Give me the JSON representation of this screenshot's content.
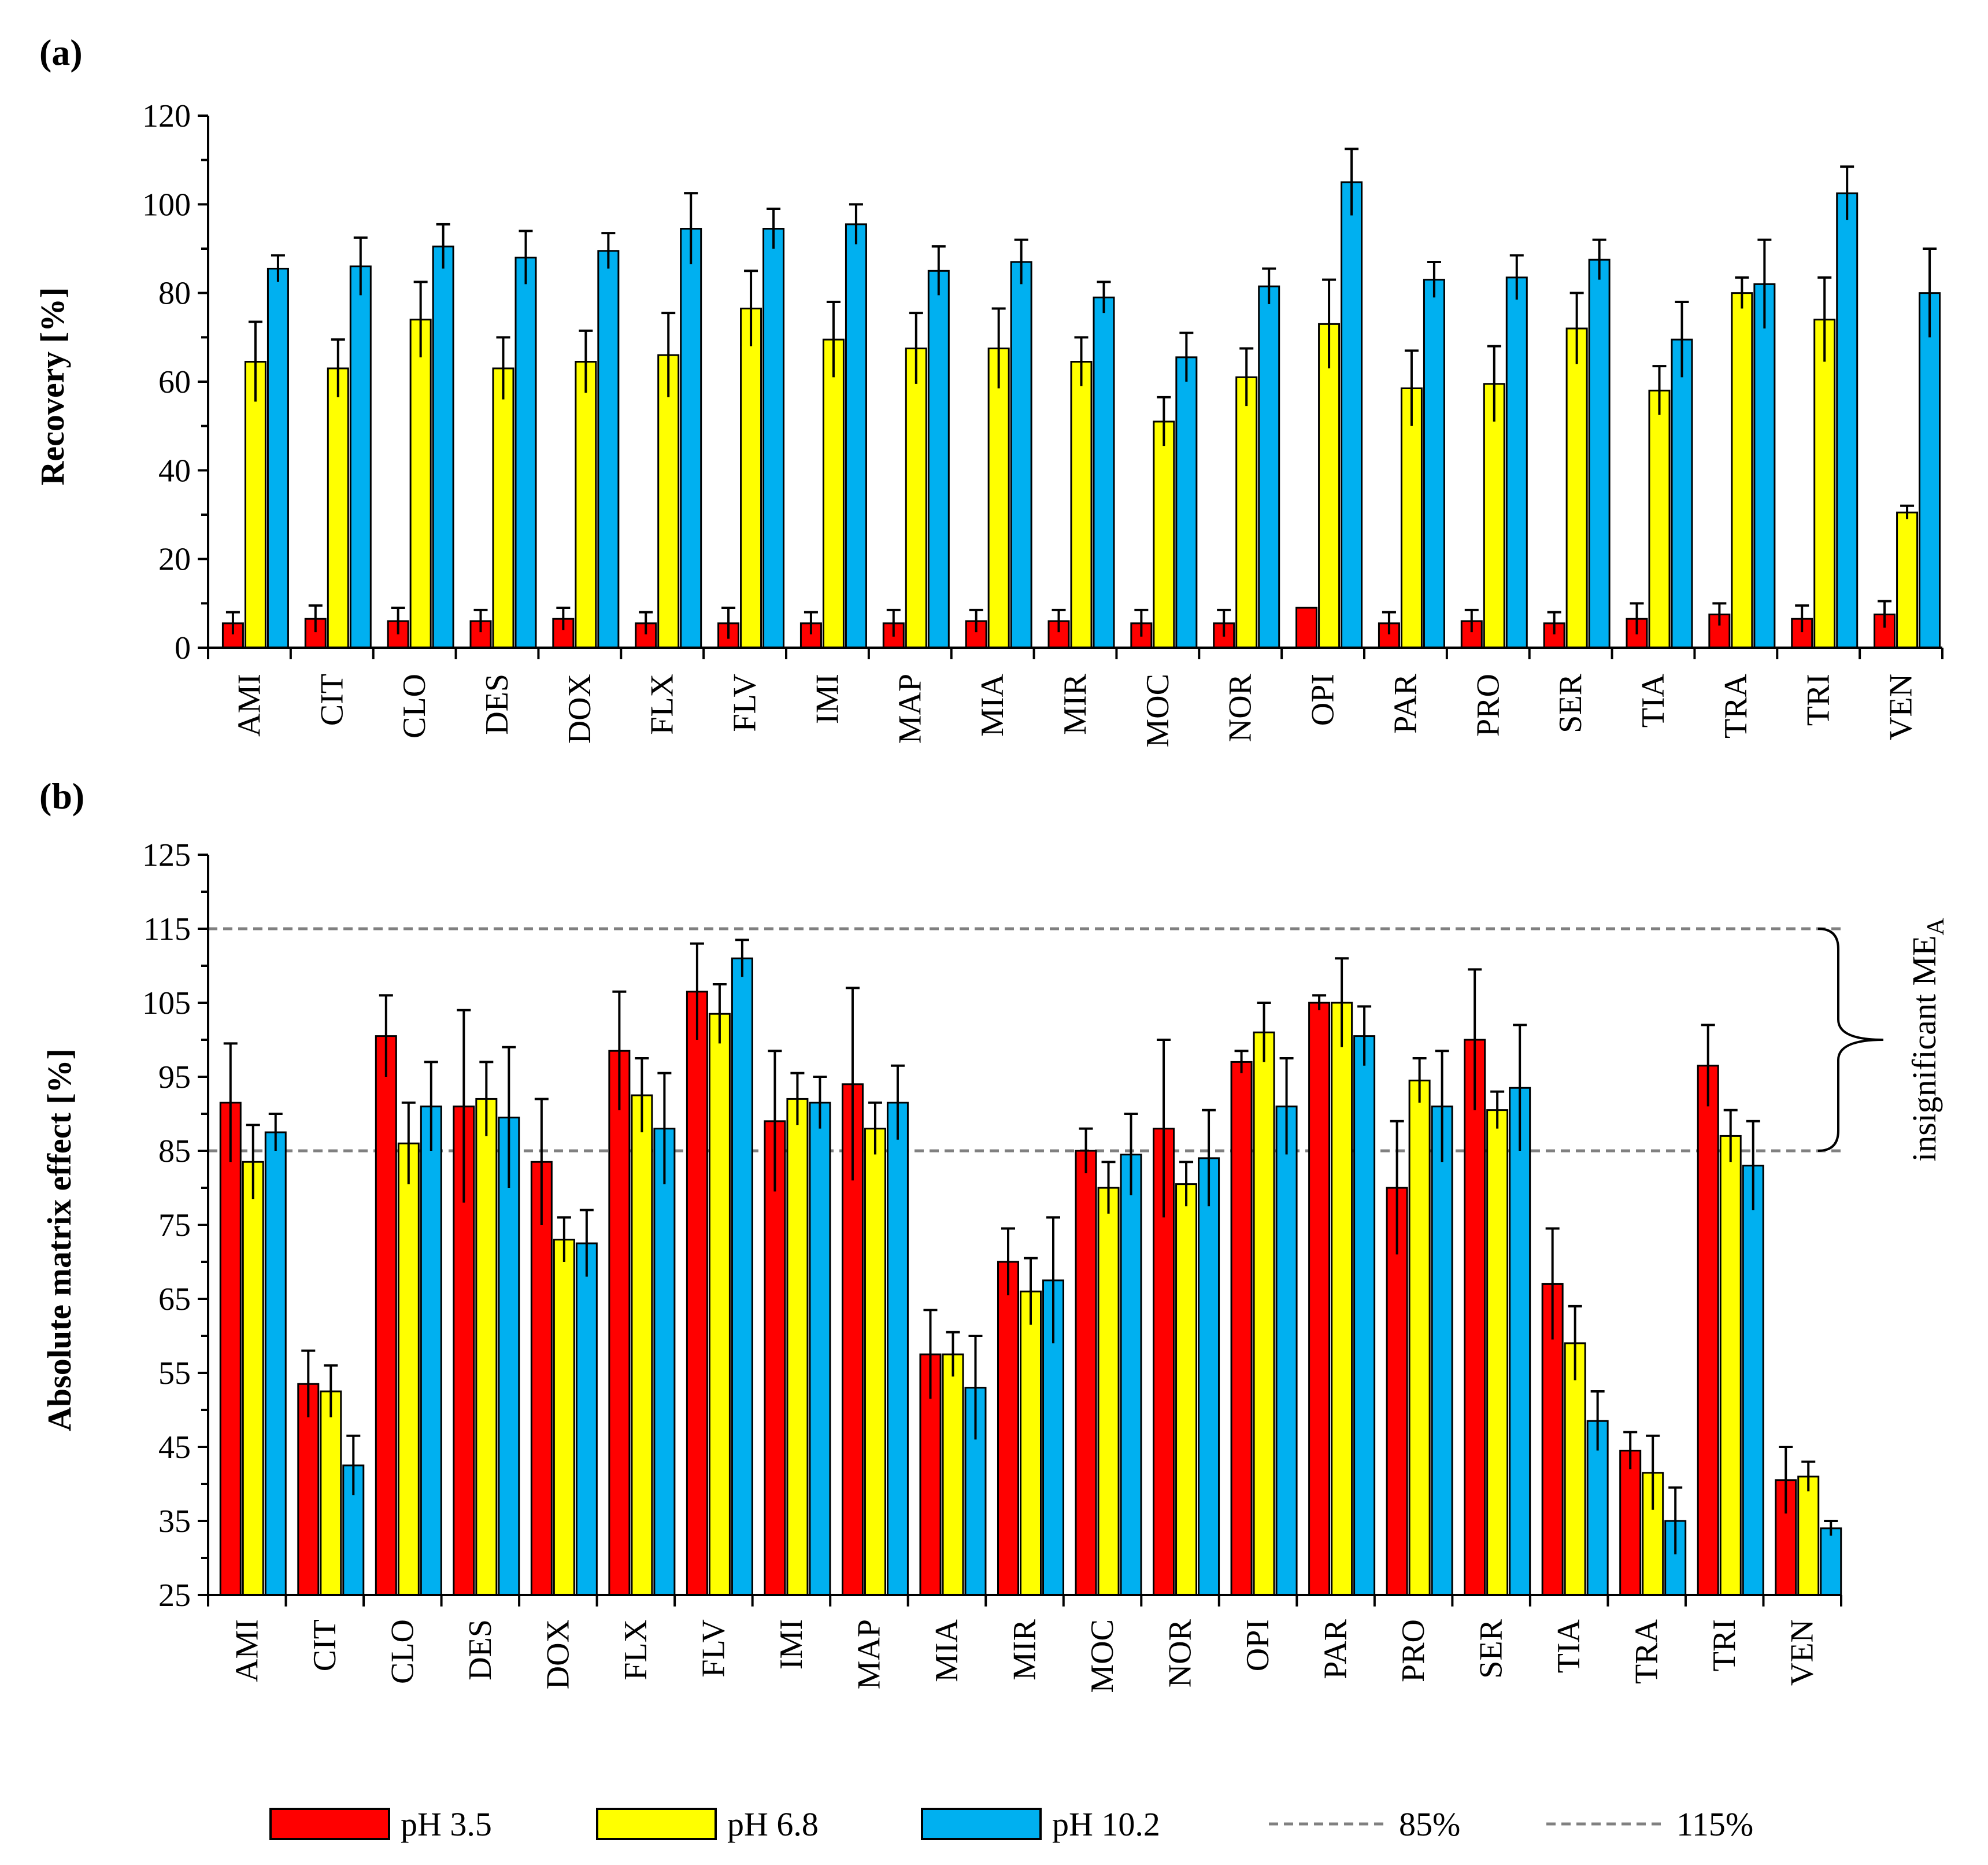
{
  "chart_data": [
    {
      "panel_label": "(a)",
      "type": "bar",
      "ylabel": "Recovery [%]",
      "xlabel": "",
      "ylim": [
        0,
        120
      ],
      "ytick_step": 20,
      "yticks": [
        "0",
        "20",
        "40",
        "60",
        "80",
        "100",
        "120"
      ],
      "categories": [
        "AMI",
        "CIT",
        "CLO",
        "DES",
        "DOX",
        "FLX",
        "FLV",
        "IMI",
        "MAP",
        "MIA",
        "MIR",
        "MOC",
        "NOR",
        "OPI",
        "PAR",
        "PRO",
        "SER",
        "TIA",
        "TRA",
        "TRI",
        "VEN"
      ],
      "series": [
        {
          "name": "pH 3.5",
          "values": [
            5.5,
            6.5,
            6,
            6,
            6.5,
            5.5,
            5.5,
            5.5,
            5.5,
            6,
            6,
            5.5,
            5.5,
            9,
            5.5,
            6,
            5.5,
            6.5,
            7.5,
            6.5,
            7.5
          ],
          "errors": [
            2.5,
            3,
            3,
            2.5,
            2.5,
            2.5,
            3.5,
            2.5,
            3,
            2.5,
            2.5,
            3,
            3,
            0,
            2.5,
            2.5,
            2.5,
            3.5,
            2.5,
            3,
            3
          ]
        },
        {
          "name": "pH 6.8",
          "values": [
            64.5,
            63,
            74,
            63,
            64.5,
            66,
            76.5,
            69.5,
            67.5,
            67.5,
            64.5,
            51,
            61,
            73,
            58.5,
            59.5,
            72,
            58,
            80,
            74,
            30.5
          ],
          "errors": [
            9,
            6.5,
            8.5,
            7,
            7,
            9.5,
            8.5,
            8.5,
            8,
            9,
            5.5,
            5.5,
            6.5,
            10,
            8.5,
            8.5,
            8,
            5.5,
            3.5,
            9.5,
            1.5
          ]
        },
        {
          "name": "pH 10.2",
          "values": [
            85.5,
            86,
            90.5,
            88,
            89.5,
            94.5,
            94.5,
            95.5,
            85,
            87,
            79,
            65.5,
            81.5,
            105,
            83,
            83.5,
            87.5,
            69.5,
            82,
            102.5,
            80
          ],
          "errors": [
            3,
            6.5,
            5,
            6,
            4,
            8,
            4.5,
            4.5,
            5.5,
            5,
            3.5,
            5.5,
            4,
            7.5,
            4,
            5,
            4.5,
            8.5,
            10,
            6,
            10
          ]
        }
      ]
    },
    {
      "panel_label": "(b)",
      "type": "bar",
      "ylabel": "Absolute matrix effect [%]",
      "xlabel": "",
      "ylim": [
        25,
        125
      ],
      "ytick_step": 10,
      "yticks": [
        "25",
        "35",
        "45",
        "55",
        "65",
        "75",
        "85",
        "95",
        "105",
        "115",
        "125"
      ],
      "categories": [
        "AMI",
        "CIT",
        "CLO",
        "DES",
        "DOX",
        "FLX",
        "FLV",
        "IMI",
        "MAP",
        "MIA",
        "MIR",
        "MOC",
        "NOR",
        "OPI",
        "PAR",
        "PRO",
        "SER",
        "TIA",
        "TRA",
        "TRI",
        "VEN"
      ],
      "series": [
        {
          "name": "pH 3.5",
          "values": [
            91.5,
            53.5,
            100.5,
            91,
            83.5,
            98.5,
            106.5,
            89,
            94,
            57.5,
            70,
            85,
            88,
            97,
            105,
            80,
            100,
            67,
            44.5,
            96.5,
            40.5
          ],
          "errors": [
            8,
            4.5,
            5.5,
            13,
            8.5,
            8,
            6.5,
            9.5,
            13,
            6,
            4.5,
            3,
            12,
            1.5,
            1,
            9,
            9.5,
            7.5,
            2.5,
            5.5,
            4.5
          ]
        },
        {
          "name": "pH 6.8",
          "values": [
            83.5,
            52.5,
            86,
            92,
            73,
            92.5,
            103.5,
            92,
            88,
            57.5,
            66,
            80,
            80.5,
            101,
            105,
            94.5,
            90.5,
            59,
            41.5,
            87,
            41
          ],
          "errors": [
            5,
            3.5,
            5.5,
            5,
            3,
            5,
            4,
            3.5,
            3.5,
            3,
            4.5,
            3.5,
            3,
            4,
            6,
            3,
            2.5,
            5,
            5,
            3.5,
            2
          ]
        },
        {
          "name": "pH 10.2",
          "values": [
            87.5,
            42.5,
            91,
            89.5,
            72.5,
            88,
            111,
            91.5,
            91.5,
            53,
            67.5,
            84.5,
            84,
            91,
            100.5,
            91,
            93.5,
            48.5,
            35,
            83,
            34
          ],
          "errors": [
            2.5,
            4,
            6,
            9.5,
            4.5,
            7.5,
            2.5,
            3.5,
            5,
            7,
            8.5,
            5.5,
            6.5,
            6.5,
            4,
            7.5,
            8.5,
            4,
            4.5,
            6,
            1
          ]
        }
      ],
      "reference_lines": [
        {
          "name": "85%",
          "value": 85
        },
        {
          "name": "115%",
          "value": 115
        }
      ],
      "annotation": {
        "text": "insignificant ME",
        "subscript": "A",
        "range": [
          85,
          115
        ]
      }
    }
  ],
  "legend": {
    "placement": "bottom",
    "items": [
      {
        "label": "pH 3.5",
        "kind": "box",
        "color": "#ff0000"
      },
      {
        "label": "pH 6.8",
        "kind": "box",
        "color": "#ffff00"
      },
      {
        "label": "pH 10.2",
        "kind": "box",
        "color": "#00b0f0"
      },
      {
        "label": "85%",
        "kind": "dash",
        "color": "#808080"
      },
      {
        "label": "115%",
        "kind": "dash",
        "color": "#808080"
      }
    ]
  },
  "colors": {
    "series": [
      "#ff0000",
      "#ffff00",
      "#00b0f0"
    ],
    "reference_line": "#808080",
    "axis": "#000000"
  }
}
